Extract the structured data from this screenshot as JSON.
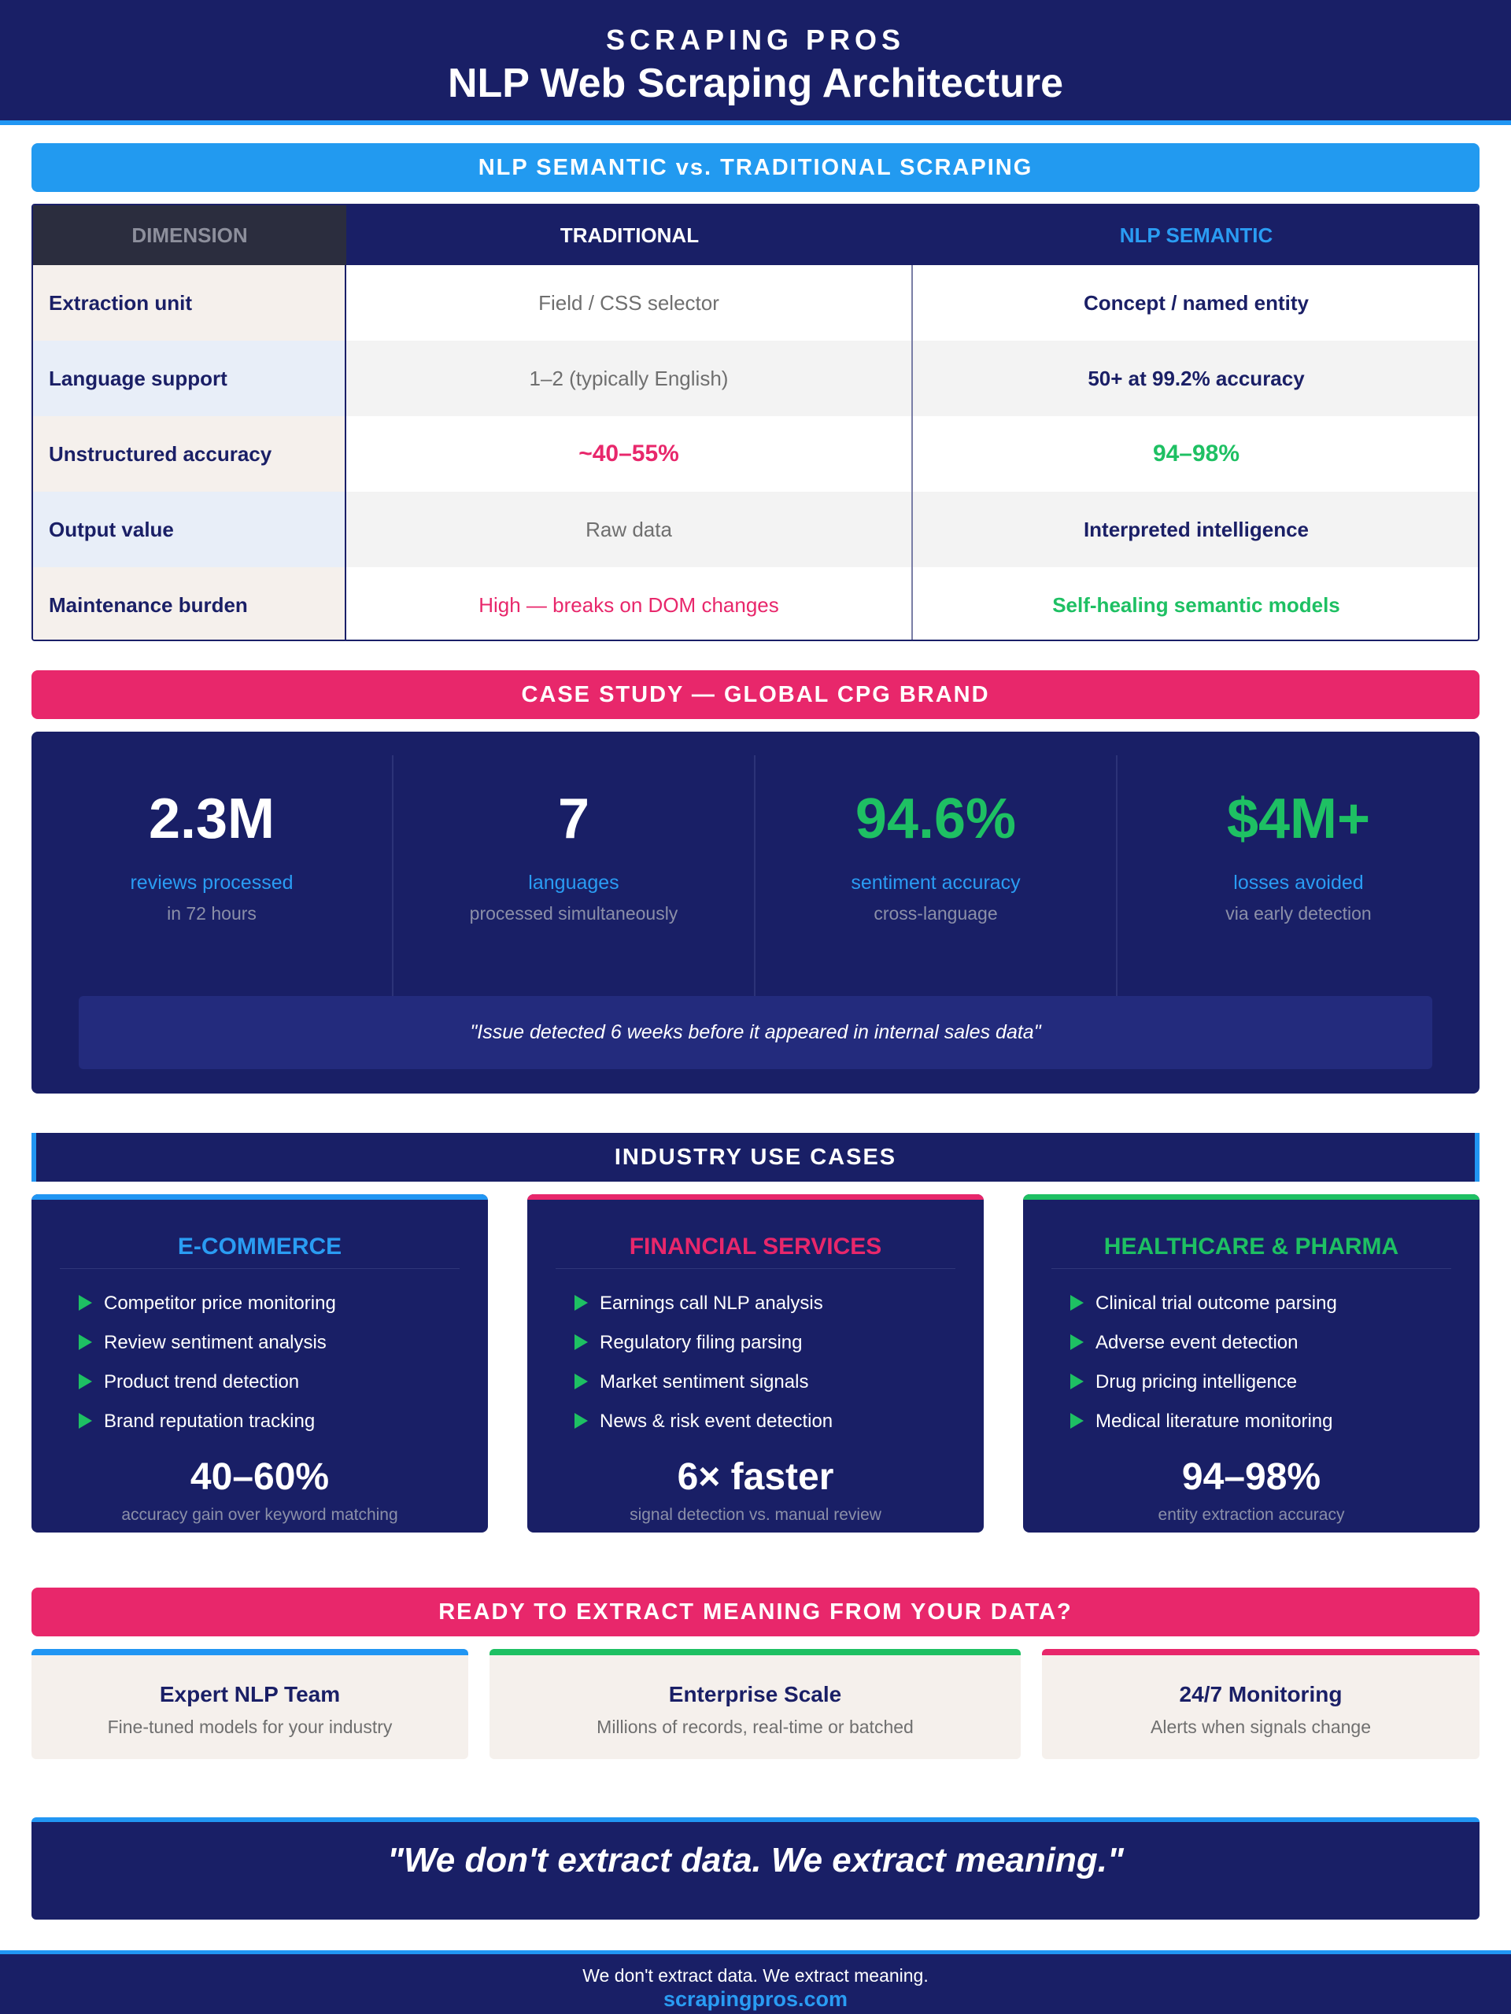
{
  "header": {
    "brand": "SCRAPING PROS",
    "title": "NLP Web Scraping Architecture"
  },
  "comparison": {
    "banner": "NLP SEMANTIC vs. TRADITIONAL SCRAPING",
    "columns": [
      "DIMENSION",
      "TRADITIONAL",
      "NLP SEMANTIC"
    ],
    "rows": [
      {
        "dimension": "Extraction unit",
        "traditional": "Field / CSS selector",
        "nlp": "Concept / named entity"
      },
      {
        "dimension": "Language support",
        "traditional": "1–2 (typically English)",
        "nlp": "50+ at 99.2% accuracy"
      },
      {
        "dimension": "Unstructured accuracy",
        "traditional": "~40–55%",
        "nlp": "94–98%"
      },
      {
        "dimension": "Output value",
        "traditional": "Raw data",
        "nlp": "Interpreted intelligence"
      },
      {
        "dimension": "Maintenance burden",
        "traditional": "High — breaks on DOM changes",
        "nlp": "Self-healing semantic models"
      }
    ]
  },
  "case_study": {
    "banner": "CASE STUDY — GLOBAL CPG BRAND",
    "stats": [
      {
        "value": "2.3M",
        "label": "reviews processed",
        "sub": "in 72 hours"
      },
      {
        "value": "7",
        "label": "languages",
        "sub": "processed simultaneously"
      },
      {
        "value": "94.6%",
        "label": "sentiment accuracy",
        "sub": "cross-language"
      },
      {
        "value": "$4M+",
        "label": "losses avoided",
        "sub": "via early detection"
      }
    ],
    "quote": "\"Issue detected 6 weeks before it appeared in internal sales data\""
  },
  "industry": {
    "banner": "INDUSTRY USE CASES",
    "cards": [
      {
        "title": "E-COMMERCE",
        "accent": "#2a9cf3",
        "items": [
          "Competitor price monitoring",
          "Review sentiment analysis",
          "Product trend detection",
          "Brand reputation tracking"
        ],
        "metric": "40–60%",
        "metric_sub": "accuracy gain over keyword matching"
      },
      {
        "title": "FINANCIAL SERVICES",
        "accent": "#e8276b",
        "items": [
          "Earnings call NLP analysis",
          "Regulatory filing parsing",
          "Market sentiment signals",
          "News & risk event detection"
        ],
        "metric": "6× faster",
        "metric_sub": "signal detection vs. manual review"
      },
      {
        "title": "HEALTHCARE & PHARMA",
        "accent": "#1ec063",
        "items": [
          "Clinical trial outcome parsing",
          "Adverse event detection",
          "Drug pricing intelligence",
          "Medical literature monitoring"
        ],
        "metric": "94–98%",
        "metric_sub": "entity extraction accuracy"
      }
    ]
  },
  "cta": {
    "banner": "READY TO EXTRACT MEANING FROM YOUR DATA?",
    "features": [
      {
        "title": "Expert NLP Team",
        "sub": "Fine-tuned models for your industry",
        "accent": "#2196f3"
      },
      {
        "title": "Enterprise Scale",
        "sub": "Millions of records, real-time or batched",
        "accent": "#1ec063"
      },
      {
        "title": "24/7 Monitoring",
        "sub": "Alerts when signals change",
        "accent": "#e8276b"
      }
    ]
  },
  "tagline": "\"We don't extract data. We extract meaning.\"",
  "footer": {
    "tagline": "We don't extract data. We extract meaning.",
    "url": "scrapingpros.com"
  }
}
